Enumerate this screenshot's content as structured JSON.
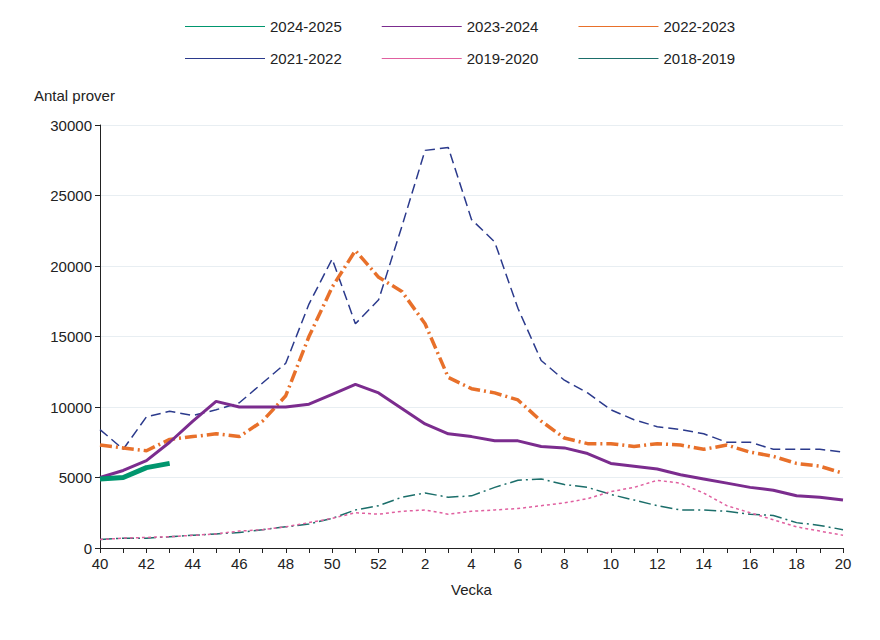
{
  "chart_data": {
    "type": "line",
    "x_label": "Vecka",
    "y_label": "Antal prover",
    "categories": [
      "40",
      null,
      "42",
      null,
      "44",
      null,
      "46",
      null,
      "48",
      null,
      "50",
      null,
      "52",
      null,
      "2",
      null,
      "4",
      null,
      "6",
      null,
      "8",
      null,
      "10",
      null,
      "12",
      null,
      "14",
      null,
      "16",
      null,
      "18",
      null,
      "20"
    ],
    "ylim": [
      0,
      30000
    ],
    "yticks": [
      0,
      5000,
      10000,
      15000,
      20000,
      25000,
      30000
    ],
    "grid": true,
    "legend": "top",
    "series": [
      {
        "name": "2024-2025",
        "color": "#00966e",
        "line_style": "solid",
        "values": [
          4900,
          5000,
          5700,
          6000,
          null,
          null,
          null,
          null,
          null,
          null,
          null,
          null,
          null,
          null,
          null,
          null,
          null,
          null,
          null,
          null,
          null,
          null,
          null,
          null,
          null,
          null,
          null,
          null,
          null,
          null,
          null,
          null,
          null
        ]
      },
      {
        "name": "2023-2024",
        "color": "#7b2c8e",
        "line_style": "solid",
        "values": [
          5000,
          5500,
          6200,
          7500,
          9000,
          10400,
          10000,
          10000,
          10000,
          10200,
          10900,
          11600,
          11000,
          9900,
          8800,
          8100,
          7900,
          7600,
          7600,
          7200,
          7100,
          6700,
          6000,
          5800,
          5600,
          5200,
          4900,
          4600,
          4300,
          4100,
          3700,
          3600,
          3400
        ]
      },
      {
        "name": "2022-2023",
        "color": "#e8702a",
        "line_style": "dashdot",
        "values": [
          7300,
          7100,
          6900,
          7700,
          7900,
          8100,
          7900,
          9000,
          10800,
          15000,
          18500,
          21100,
          19200,
          18200,
          15900,
          12100,
          11300,
          11000,
          10500,
          9000,
          7800,
          7400,
          7400,
          7200,
          7400,
          7300,
          7000,
          7300,
          6800,
          6500,
          6000,
          5800,
          5300
        ]
      },
      {
        "name": "2021-2022",
        "color": "#2b3a8c",
        "line_style": "dashed",
        "values": [
          8400,
          7000,
          9300,
          9700,
          9400,
          9800,
          10300,
          11700,
          13100,
          17300,
          20500,
          15900,
          17600,
          22800,
          28200,
          28400,
          23300,
          21700,
          17000,
          13300,
          11900,
          11000,
          9800,
          9100,
          8600,
          8400,
          8100,
          7500,
          7500,
          7000,
          7000,
          7000,
          6800
        ]
      },
      {
        "name": "2019-2020",
        "color": "#e060a0",
        "line_style": "dotted",
        "values": [
          600,
          700,
          750,
          800,
          900,
          1000,
          1200,
          1300,
          1500,
          1800,
          2100,
          2500,
          2400,
          2600,
          2700,
          2400,
          2600,
          2700,
          2800,
          3000,
          3200,
          3500,
          4000,
          4300,
          4800,
          4600,
          3900,
          3000,
          2500,
          2000,
          1500,
          1200,
          900
        ]
      },
      {
        "name": "2018-2019",
        "color": "#1b6e6a",
        "line_style": "dashdot",
        "values": [
          600,
          700,
          700,
          800,
          900,
          1000,
          1100,
          1300,
          1500,
          1700,
          2100,
          2700,
          3000,
          3600,
          3900,
          3600,
          3700,
          4300,
          4800,
          4900,
          4500,
          4300,
          3800,
          3400,
          3000,
          2700,
          2700,
          2600,
          2400,
          2300,
          1800,
          1600,
          1300
        ]
      }
    ]
  }
}
